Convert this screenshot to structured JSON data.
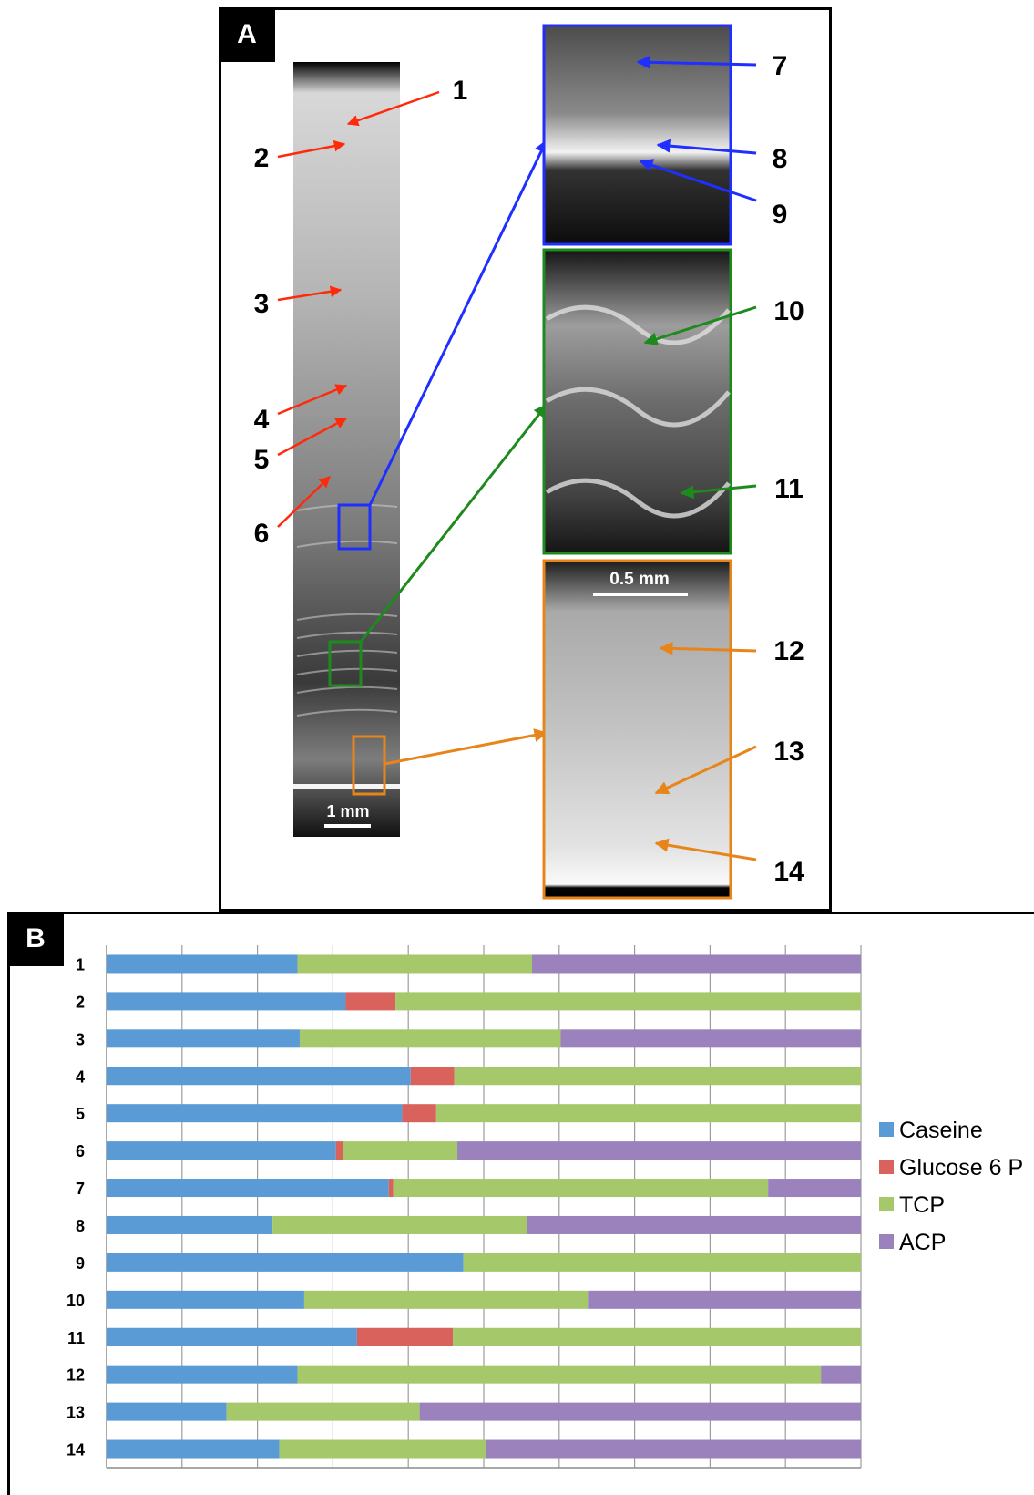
{
  "panel_a": {
    "letter": "A",
    "scale_main": "1 mm",
    "scale_zoom": "0.5 mm",
    "red_labels": [
      "1",
      "2",
      "3",
      "4",
      "5",
      "6"
    ],
    "blue_labels": [
      "7",
      "8",
      "9"
    ],
    "green_labels": [
      "10",
      "11"
    ],
    "orange_labels": [
      "12",
      "13",
      "14"
    ],
    "colors": {
      "red": "#ff2a0a",
      "blue": "#1f2fff",
      "green": "#1e8a1e",
      "orange": "#e8851a"
    }
  },
  "panel_b": {
    "letter": "B"
  },
  "chart_data": {
    "type": "bar",
    "orientation": "horizontal",
    "stacked": true,
    "normalized": true,
    "categories": [
      "1",
      "2",
      "3",
      "4",
      "5",
      "6",
      "7",
      "8",
      "9",
      "10",
      "11",
      "12",
      "13",
      "14"
    ],
    "series": [
      {
        "name": "Caseine",
        "color": "#5b9bd5",
        "values": [
          25.3,
          31.7,
          25.6,
          40.3,
          39.2,
          30.4,
          37.4,
          22.0,
          47.3,
          26.2,
          33.2,
          25.3,
          15.9,
          22.9
        ]
      },
      {
        "name": "Glucose 6 P",
        "color": "#d9625c",
        "values": [
          0,
          6.6,
          0,
          5.8,
          4.5,
          0.9,
          0.6,
          0,
          0,
          0,
          12.7,
          0,
          0,
          0
        ]
      },
      {
        "name": "TCP",
        "color": "#a5c86a",
        "values": [
          31.1,
          61.7,
          34.6,
          53.9,
          56.3,
          15.2,
          49.7,
          33.7,
          52.7,
          37.6,
          54.1,
          69.4,
          25.6,
          27.4
        ]
      },
      {
        "name": "ACP",
        "color": "#9b82bd",
        "values": [
          43.6,
          0,
          39.8,
          0,
          0,
          53.5,
          12.3,
          44.3,
          0,
          36.2,
          0,
          5.3,
          58.5,
          49.7
        ]
      }
    ],
    "xlim": [
      0,
      100
    ],
    "grid": true,
    "legend": "right"
  }
}
